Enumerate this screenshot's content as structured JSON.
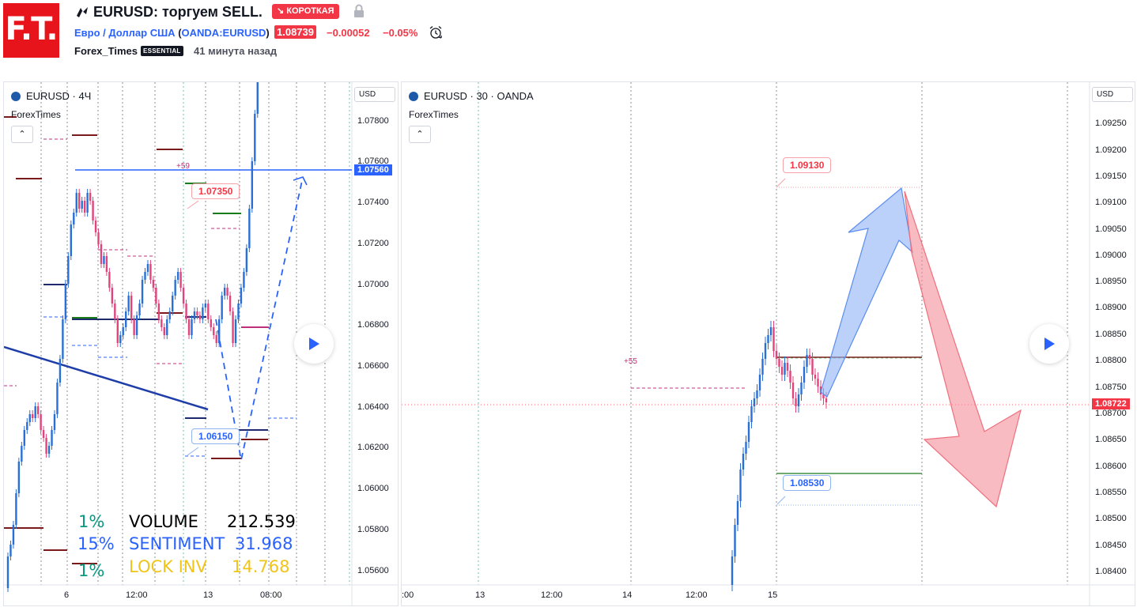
{
  "header": {
    "logo_text": "F.T.",
    "idea_title": "EURUSD: торгуем SELL.",
    "direction_badge": "↘ КОРОТКАЯ",
    "symbol_desc": "Евро / Доллар США",
    "symbol_paren_open": "(",
    "symbol_code": "OANDA:EURUSD",
    "symbol_paren_close": ")",
    "price": "1.08739",
    "change": "−0.00052",
    "change_pct": "−0.05%",
    "author": "Forex_Times",
    "author_badge": "ESSENTIAL",
    "published": "41 минута назад",
    "colors": {
      "brand": "#e8141b",
      "negative": "#f23645",
      "link": "#2962ff"
    }
  },
  "left_chart": {
    "title": "EURUSD · 4Ч",
    "subtitle": "ForexTimes",
    "currency_button": "USD",
    "price_ticks": [
      "1.07800",
      "1.07600",
      "1.07400",
      "1.07200",
      "1.07000",
      "1.06800",
      "1.06600",
      "1.06400",
      "1.06200",
      "1.06000",
      "1.05800",
      "1.05600"
    ],
    "last_price_label": "1.07560",
    "time_ticks": [
      "6",
      "12:00",
      "13",
      "08:00"
    ],
    "target_up": "1.07350",
    "target_down": "1.06150",
    "pips_label": "+59",
    "stats": [
      {
        "pct": "1%",
        "name": "VOLUME",
        "value": "212.539",
        "color": "#000000",
        "pct_color": "#089981"
      },
      {
        "pct": "15%",
        "name": "SENTIMENT",
        "value": "31.968",
        "color": "#2962ff",
        "pct_color": "#2962ff"
      },
      {
        "pct": "1%",
        "name": "LOCK INV",
        "value": "14.768",
        "color": "#f0c419",
        "pct_color": "#089981"
      }
    ]
  },
  "right_chart": {
    "title": "EURUSD · 30 · OANDA",
    "subtitle": "ForexTimes",
    "currency_button": "USD",
    "price_ticks": [
      "1.09250",
      "1.09200",
      "1.09150",
      "1.09100",
      "1.09050",
      "1.09000",
      "1.08950",
      "1.08900",
      "1.08850",
      "1.08800",
      "1.08750",
      "1.08700",
      "1.08650",
      "1.08600",
      "1.08550",
      "1.08500",
      "1.08450",
      "1.08400"
    ],
    "last_price_label": "1.08722",
    "time_ticks": [
      ":00",
      "13",
      "12:00",
      "14",
      "12:00",
      "15"
    ],
    "target_up": "1.09130",
    "target_down": "1.08530",
    "pips_label": "+55"
  }
}
